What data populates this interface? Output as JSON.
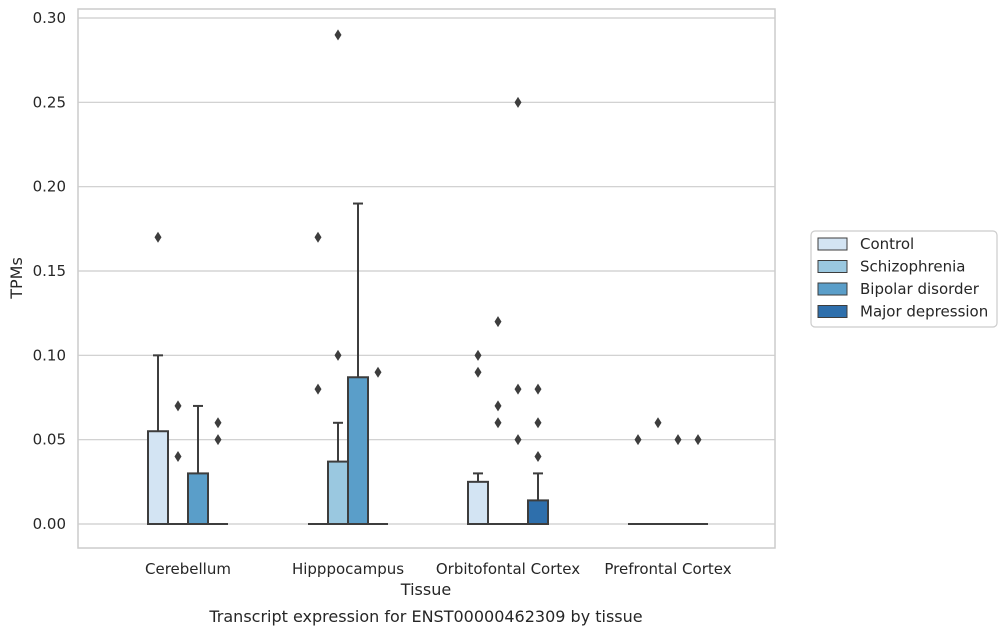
{
  "chart_data": {
    "type": "box",
    "title": "",
    "caption": "Transcript expression for ENST00000462309 by tissue",
    "xlabel": "Tissue",
    "ylabel": "TPMs",
    "ylim": [
      -0.014,
      0.305
    ],
    "yticks": [
      0.0,
      0.05,
      0.1,
      0.15,
      0.2,
      0.25,
      0.3
    ],
    "ytick_labels": [
      "0.00",
      "0.05",
      "0.10",
      "0.15",
      "0.20",
      "0.25",
      "0.30"
    ],
    "categories": [
      "Cerebellum",
      "Hipppocampus",
      "Orbitofontal Cortex",
      "Prefrontal Cortex"
    ],
    "grid": "horizontal",
    "legend_position": "right",
    "series": [
      {
        "name": "Control",
        "color": "#d3e4f3",
        "boxes": [
          {
            "q1": 0.0,
            "median": 0.0,
            "q3": 0.055,
            "whislo": 0.0,
            "whishi": 0.1,
            "fliers": [
              0.17
            ]
          },
          {
            "q1": 0.0,
            "median": 0.0,
            "q3": 0.0,
            "whislo": 0.0,
            "whishi": 0.0,
            "fliers": [
              0.08,
              0.17
            ]
          },
          {
            "q1": 0.0,
            "median": 0.0,
            "q3": 0.025,
            "whislo": 0.0,
            "whishi": 0.03,
            "fliers": [
              0.09,
              0.1
            ]
          },
          {
            "q1": 0.0,
            "median": 0.0,
            "q3": 0.0,
            "whislo": 0.0,
            "whishi": 0.0,
            "fliers": [
              0.05
            ]
          }
        ]
      },
      {
        "name": "Schizophrenia",
        "color": "#9ac8e0",
        "boxes": [
          {
            "q1": 0.0,
            "median": 0.0,
            "q3": 0.0,
            "whislo": 0.0,
            "whishi": 0.0,
            "fliers": [
              0.04,
              0.07
            ]
          },
          {
            "q1": 0.0,
            "median": 0.0,
            "q3": 0.037,
            "whislo": 0.0,
            "whishi": 0.06,
            "fliers": [
              0.1,
              0.29
            ]
          },
          {
            "q1": 0.0,
            "median": 0.0,
            "q3": 0.0,
            "whislo": 0.0,
            "whishi": 0.0,
            "fliers": [
              0.06,
              0.07,
              0.12
            ]
          },
          {
            "q1": 0.0,
            "median": 0.0,
            "q3": 0.0,
            "whislo": 0.0,
            "whishi": 0.0,
            "fliers": [
              0.06
            ]
          }
        ]
      },
      {
        "name": "Bipolar disorder",
        "color": "#5a9ec9",
        "boxes": [
          {
            "q1": 0.0,
            "median": 0.0,
            "q3": 0.03,
            "whislo": 0.0,
            "whishi": 0.07,
            "fliers": []
          },
          {
            "q1": 0.0,
            "median": 0.0,
            "q3": 0.087,
            "whislo": 0.0,
            "whishi": 0.19,
            "fliers": []
          },
          {
            "q1": 0.0,
            "median": 0.0,
            "q3": 0.0,
            "whislo": 0.0,
            "whishi": 0.0,
            "fliers": [
              0.05,
              0.08,
              0.25
            ]
          },
          {
            "q1": 0.0,
            "median": 0.0,
            "q3": 0.0,
            "whislo": 0.0,
            "whishi": 0.0,
            "fliers": [
              0.05
            ]
          }
        ]
      },
      {
        "name": "Major depression",
        "color": "#2e6fac",
        "boxes": [
          {
            "q1": 0.0,
            "median": 0.0,
            "q3": 0.0,
            "whislo": 0.0,
            "whishi": 0.0,
            "fliers": [
              0.05,
              0.06
            ]
          },
          {
            "q1": 0.0,
            "median": 0.0,
            "q3": 0.0,
            "whislo": 0.0,
            "whishi": 0.0,
            "fliers": [
              0.09
            ]
          },
          {
            "q1": 0.0,
            "median": 0.0,
            "q3": 0.014,
            "whislo": 0.0,
            "whishi": 0.03,
            "fliers": [
              0.04,
              0.06,
              0.08
            ]
          },
          {
            "q1": 0.0,
            "median": 0.0,
            "q3": 0.0,
            "whislo": 0.0,
            "whishi": 0.0,
            "fliers": [
              0.05
            ]
          }
        ]
      }
    ]
  }
}
